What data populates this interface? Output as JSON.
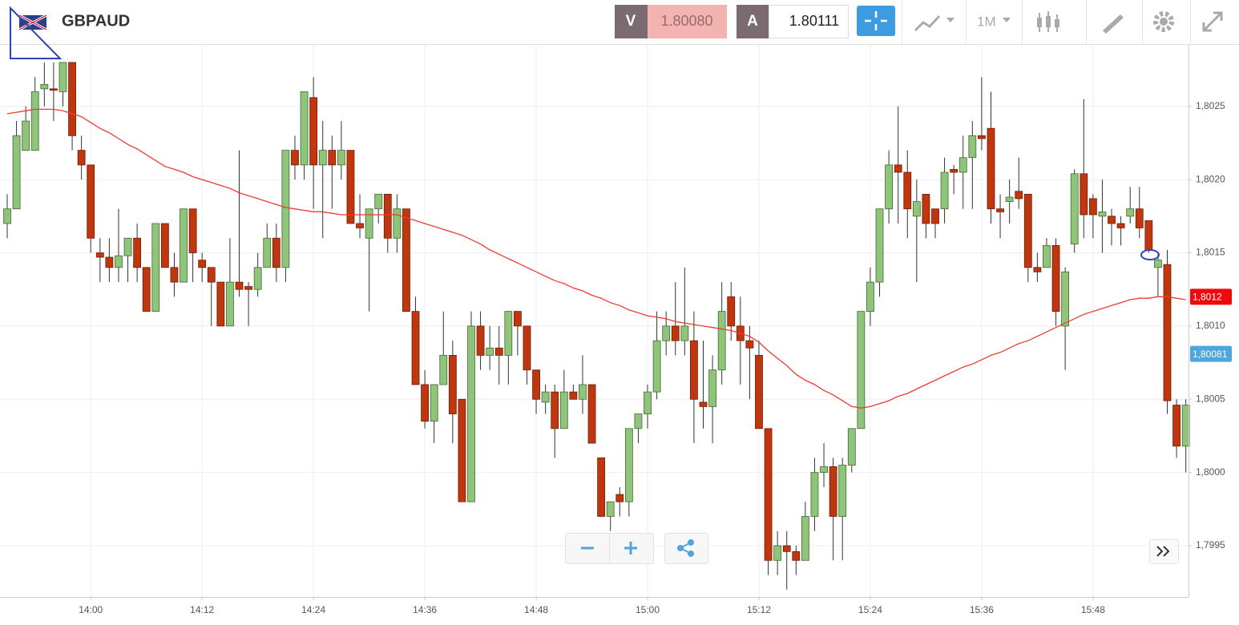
{
  "header": {
    "symbol": "GBPAUD",
    "bid_label": "V",
    "bid": "1.80080",
    "ask_label": "A",
    "ask": "1.80111",
    "timeframe": "1M"
  },
  "chart_data": {
    "type": "candlestick",
    "x": [
      "13:51",
      "13:52",
      "13:53",
      "13:54",
      "13:55",
      "13:56",
      "13:57",
      "13:58",
      "13:59",
      "14:00",
      "14:01",
      "14:02",
      "14:03",
      "14:04",
      "14:05",
      "14:06",
      "14:07",
      "14:08",
      "14:09",
      "14:10",
      "14:11",
      "14:12",
      "14:13",
      "14:14",
      "14:15",
      "14:16",
      "14:17",
      "14:18",
      "14:19",
      "14:20",
      "14:21",
      "14:22",
      "14:23",
      "14:24",
      "14:25",
      "14:26",
      "14:27",
      "14:28",
      "14:29",
      "14:30",
      "14:31",
      "14:32",
      "14:33",
      "14:34",
      "14:35",
      "14:36",
      "14:37",
      "14:38",
      "14:39",
      "14:40",
      "14:41",
      "14:42",
      "14:43",
      "14:44",
      "14:45",
      "14:46",
      "14:47",
      "14:48",
      "14:49",
      "14:50",
      "14:51",
      "14:52",
      "14:53",
      "14:54",
      "14:55",
      "14:56",
      "14:57",
      "14:58",
      "14:59",
      "15:00",
      "15:01",
      "15:02",
      "15:03",
      "15:04",
      "15:05",
      "15:06",
      "15:07",
      "15:08",
      "15:09",
      "15:10",
      "15:11",
      "15:12",
      "15:13",
      "15:14",
      "15:15",
      "15:16",
      "15:17",
      "15:18",
      "15:19",
      "15:20",
      "15:21",
      "15:22",
      "15:23",
      "15:24",
      "15:25",
      "15:26",
      "15:27",
      "15:28",
      "15:29",
      "15:30",
      "15:31",
      "15:32",
      "15:33",
      "15:34",
      "15:35",
      "15:36",
      "15:37",
      "15:38",
      "15:39",
      "15:40",
      "15:41",
      "15:42",
      "15:43",
      "15:44",
      "15:45",
      "15:46",
      "15:47",
      "15:48",
      "15:49",
      "15:50",
      "15:51",
      "15:52",
      "15:53",
      "15:54",
      "15:55",
      "15:56",
      "15:57",
      "15:58"
    ],
    "open": [
      1.8017,
      1.8018,
      1.8022,
      1.8022,
      1.80262,
      1.80262,
      1.8026,
      1.8028,
      1.8022,
      1.8021,
      1.8015,
      1.80147,
      1.8014,
      1.80148,
      1.8016,
      1.8014,
      1.8011,
      1.8017,
      1.8014,
      1.8013,
      1.8018,
      1.80145,
      1.8014,
      1.8013,
      1.801,
      1.8013,
      1.80127,
      1.80125,
      1.8014,
      1.8016,
      1.8014,
      1.8022,
      1.8021,
      1.80256,
      1.8021,
      1.8022,
      1.8021,
      1.8022,
      1.8017,
      1.8016,
      1.8018,
      1.8019,
      1.8016,
      1.8018,
      1.8011,
      1.8006,
      1.80035,
      1.8006,
      1.8008,
      1.8005,
      1.7998,
      1.801,
      1.8008,
      1.80085,
      1.8008,
      1.8011,
      1.801,
      1.8007,
      1.80048,
      1.80055,
      1.8003,
      1.80055,
      1.8005,
      1.8006,
      1.8001,
      1.7997,
      1.79985,
      1.7998,
      1.8003,
      1.8004,
      1.80055,
      1.8009,
      1.801,
      1.8009,
      1.8009,
      1.80048,
      1.80045,
      1.8007,
      1.8012,
      1.801,
      1.8009,
      1.8008,
      1.8003,
      1.7994,
      1.7995,
      1.79946,
      1.7994,
      1.7997,
      1.8,
      1.80004,
      1.7997,
      1.80005,
      1.8003,
      1.8011,
      1.8013,
      1.8018,
      1.8021,
      1.80205,
      1.80175,
      1.8019,
      1.8018,
      1.8018,
      1.80207,
      1.80205,
      1.80215,
      1.8023,
      1.80235,
      1.8018,
      1.80185,
      1.80192,
      1.8019,
      1.8014,
      1.8014,
      1.80155,
      1.801,
      1.80156,
      1.80204,
      1.80187,
      1.80175,
      1.80175,
      1.8017,
      1.80175,
      1.8018,
      1.80172,
      1.8014,
      1.80142,
      1.80046,
      1.80018
    ],
    "high": [
      1.8019,
      1.8024,
      1.8025,
      1.8027,
      1.8028,
      1.8028,
      1.8028,
      1.8028,
      1.8023,
      1.8021,
      1.8016,
      1.8016,
      1.8018,
      1.8016,
      1.8017,
      1.8014,
      1.8017,
      1.8017,
      1.8015,
      1.8018,
      1.8018,
      1.8015,
      1.8014,
      1.8013,
      1.8016,
      1.8022,
      1.8013,
      1.8015,
      1.8017,
      1.8017,
      1.8022,
      1.8023,
      1.8026,
      1.8027,
      1.8024,
      1.8023,
      1.8024,
      1.8022,
      1.8019,
      1.8018,
      1.8019,
      1.8019,
      1.8019,
      1.8018,
      1.8012,
      1.8007,
      1.8006,
      1.8011,
      1.8009,
      1.8005,
      1.8011,
      1.8011,
      1.801,
      1.801,
      1.8011,
      1.8011,
      1.801,
      1.8007,
      1.8006,
      1.8006,
      1.8007,
      1.8006,
      1.8008,
      1.8006,
      1.8001,
      1.7998,
      1.7999,
      1.8003,
      1.8004,
      1.8006,
      1.8011,
      1.8011,
      1.8013,
      1.8014,
      1.8011,
      1.8009,
      1.8008,
      1.8013,
      1.8013,
      1.8012,
      1.801,
      1.8009,
      1.8003,
      1.7996,
      1.7996,
      1.7995,
      1.7998,
      1.8001,
      1.8002,
      1.8001,
      1.8001,
      1.8003,
      1.8011,
      1.8014,
      1.8018,
      1.8022,
      1.8025,
      1.8022,
      1.802,
      1.8019,
      1.8018,
      1.80215,
      1.8021,
      1.8023,
      1.8024,
      1.8027,
      1.8026,
      1.8019,
      1.802,
      1.80215,
      1.8019,
      1.8015,
      1.8016,
      1.8016,
      1.8014,
      1.80207,
      1.80255,
      1.8019,
      1.802,
      1.8018,
      1.80175,
      1.80195,
      1.80195,
      1.8017,
      1.8015,
      1.80152,
      1.8005,
      1.8005
    ],
    "low": [
      1.8016,
      1.8018,
      1.8022,
      1.8022,
      1.8025,
      1.8024,
      1.8025,
      1.8022,
      1.802,
      1.8015,
      1.8013,
      1.8013,
      1.8013,
      1.8013,
      1.8013,
      1.8011,
      1.8011,
      1.8014,
      1.8012,
      1.8013,
      1.8013,
      1.8013,
      1.801,
      1.801,
      1.801,
      1.8012,
      1.801,
      1.8012,
      1.8014,
      1.8013,
      1.8013,
      1.802,
      1.802,
      1.8018,
      1.8016,
      1.8018,
      1.802,
      1.8017,
      1.8016,
      1.8011,
      1.8017,
      1.8015,
      1.8015,
      1.8011,
      1.8006,
      1.8003,
      1.8002,
      1.8006,
      1.8002,
      1.7998,
      1.7998,
      1.8007,
      1.8007,
      1.8006,
      1.8006,
      1.8008,
      1.8006,
      1.8004,
      1.8004,
      1.8001,
      1.8003,
      1.8005,
      1.8004,
      1.8002,
      1.7997,
      1.7996,
      1.7997,
      1.7997,
      1.8002,
      1.8003,
      1.8005,
      1.8008,
      1.8008,
      1.8008,
      1.8002,
      1.8003,
      1.8002,
      1.8006,
      1.8009,
      1.8006,
      1.8005,
      1.8003,
      1.7993,
      1.7993,
      1.7992,
      1.7993,
      1.7994,
      1.7996,
      1.7999,
      1.7994,
      1.7994,
      1.8,
      1.8003,
      1.801,
      1.8012,
      1.8017,
      1.8017,
      1.8016,
      1.8013,
      1.8016,
      1.8016,
      1.8017,
      1.8019,
      1.8018,
      1.8018,
      1.8022,
      1.8017,
      1.8016,
      1.8017,
      1.8018,
      1.8013,
      1.8013,
      1.8014,
      1.801,
      1.8007,
      1.8015,
      1.8016,
      1.8016,
      1.8015,
      1.80155,
      1.80155,
      1.8017,
      1.8016,
      1.8015,
      1.8012,
      1.8004,
      1.8001,
      1.8
    ],
    "close": [
      1.8018,
      1.8023,
      1.8024,
      1.8026,
      1.80265,
      1.80261,
      1.8028,
      1.8023,
      1.8021,
      1.8016,
      1.80147,
      1.8014,
      1.80148,
      1.8016,
      1.8014,
      1.8011,
      1.8017,
      1.8014,
      1.8013,
      1.8018,
      1.8015,
      1.8014,
      1.8013,
      1.801,
      1.8013,
      1.80125,
      1.80125,
      1.8014,
      1.8016,
      1.8014,
      1.8022,
      1.8021,
      1.8026,
      1.8021,
      1.8022,
      1.8021,
      1.8022,
      1.8017,
      1.80167,
      1.8018,
      1.8019,
      1.8016,
      1.8018,
      1.8011,
      1.8006,
      1.80035,
      1.8006,
      1.8008,
      1.8004,
      1.7998,
      1.801,
      1.8008,
      1.80085,
      1.8008,
      1.8011,
      1.801,
      1.8007,
      1.8005,
      1.80055,
      1.8003,
      1.80055,
      1.8005,
      1.8006,
      1.8002,
      1.7997,
      1.7998,
      1.7998,
      1.8003,
      1.8004,
      1.80055,
      1.8009,
      1.801,
      1.8009,
      1.801,
      1.8005,
      1.80045,
      1.8007,
      1.8011,
      1.801,
      1.8009,
      1.80085,
      1.8003,
      1.7994,
      1.7995,
      1.79946,
      1.7994,
      1.7997,
      1.8,
      1.80004,
      1.7997,
      1.80005,
      1.8003,
      1.8011,
      1.8013,
      1.8018,
      1.8021,
      1.80205,
      1.8018,
      1.80185,
      1.8017,
      1.8017,
      1.80205,
      1.80205,
      1.80215,
      1.8023,
      1.80228,
      1.8018,
      1.80178,
      1.80188,
      1.80187,
      1.8014,
      1.80137,
      1.80155,
      1.8011,
      1.80137,
      1.80204,
      1.80176,
      1.80176,
      1.80178,
      1.8017,
      1.80167,
      1.8018,
      1.80167,
      1.80152,
      1.80145,
      1.80049,
      1.80018,
      1.80046
    ],
    "up_color": "#8fc47a",
    "down_color": "#c0360f",
    "overlay": {
      "type": "line",
      "color": "#f03a32",
      "values": [
        1.80245,
        1.80246,
        1.80247,
        1.80248,
        1.80248,
        1.80248,
        1.80247,
        1.80245,
        1.80243,
        1.80239,
        1.80235,
        1.80232,
        1.80228,
        1.80224,
        1.80221,
        1.80217,
        1.80213,
        1.80209,
        1.80207,
        1.80205,
        1.80202,
        1.802,
        1.80198,
        1.80196,
        1.80194,
        1.80191,
        1.80189,
        1.80187,
        1.80185,
        1.80183,
        1.80181,
        1.8018,
        1.80179,
        1.80178,
        1.80178,
        1.80177,
        1.80176,
        1.80176,
        1.80176,
        1.80176,
        1.80176,
        1.80176,
        1.80176,
        1.80174,
        1.80172,
        1.8017,
        1.80168,
        1.80166,
        1.80164,
        1.80162,
        1.80159,
        1.80156,
        1.80152,
        1.80149,
        1.80146,
        1.80143,
        1.8014,
        1.80137,
        1.80134,
        1.80131,
        1.80129,
        1.80126,
        1.80124,
        1.80121,
        1.80119,
        1.80116,
        1.80114,
        1.80111,
        1.80109,
        1.80107,
        1.80106,
        1.80105,
        1.80103,
        1.80102,
        1.80101,
        1.801,
        1.80099,
        1.80098,
        1.80097,
        1.80095,
        1.80093,
        1.80089,
        1.80083,
        1.80078,
        1.80073,
        1.80067,
        1.80063,
        1.8006,
        1.80056,
        1.80053,
        1.80049,
        1.80045,
        1.80044,
        1.80045,
        1.80047,
        1.80049,
        1.80052,
        1.80054,
        1.80057,
        1.8006,
        1.80063,
        1.80066,
        1.80069,
        1.80072,
        1.80074,
        1.80077,
        1.8008,
        1.80082,
        1.80085,
        1.80088,
        1.8009,
        1.80093,
        1.80096,
        1.80099,
        1.80102,
        1.80105,
        1.80108,
        1.8011,
        1.80112,
        1.80114,
        1.80116,
        1.80118,
        1.80119,
        1.80119,
        1.8012,
        1.8012,
        1.80119,
        1.80118
      ]
    },
    "ylim": [
      1.79915,
      1.80292
    ],
    "yticks": [
      {
        "value": 1.7995,
        "label": "1,7995"
      },
      {
        "value": 1.8,
        "label": "1,8000"
      },
      {
        "value": 1.8005,
        "label": "1,8005"
      },
      {
        "value": 1.801,
        "label": "1,8010"
      },
      {
        "value": 1.8015,
        "label": "1,8015"
      },
      {
        "value": 1.802,
        "label": "1,8020"
      },
      {
        "value": 1.8025,
        "label": "1,8025"
      }
    ],
    "xticks": [
      "14:00",
      "14:12",
      "14:24",
      "14:36",
      "14:48",
      "15:00",
      "15:12",
      "15:24",
      "15:36",
      "15:48"
    ],
    "grid": true,
    "price_tags": [
      {
        "value": 1.8012,
        "label": "1,8012",
        "color": "#ee0a0a"
      },
      {
        "value": 1.80081,
        "label": "1,80081",
        "color": "#4ea6dc"
      }
    ]
  }
}
